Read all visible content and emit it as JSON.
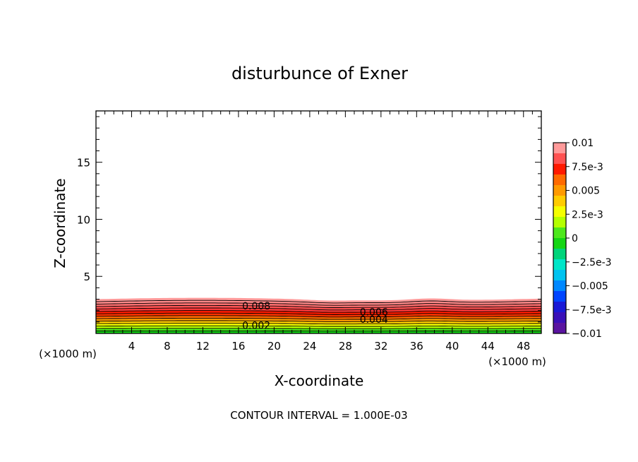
{
  "chart_data": {
    "type": "contour",
    "title": "disturbunce of Exner",
    "xlabel": "X-coordinate",
    "ylabel": "Z-coordinate",
    "x_unit": "(×1000 m)",
    "y_unit": "(×1000 m)",
    "xlim": [
      0,
      50
    ],
    "ylim": [
      0,
      19.5
    ],
    "x_ticks": [
      4,
      8,
      12,
      16,
      20,
      24,
      28,
      32,
      36,
      40,
      44,
      48
    ],
    "y_ticks": [
      5,
      10,
      15
    ],
    "contour_interval_label": "CONTOUR INTERVAL = 1.000E-03",
    "contour_levels": [
      0.001,
      0.002,
      0.003,
      0.004,
      0.005,
      0.006,
      0.007,
      0.008,
      0.009,
      0.01
    ],
    "contour_labels": [
      {
        "text": "0.008",
        "x": 18,
        "z": 2.4
      },
      {
        "text": "0.006",
        "x": 31.2,
        "z": 1.9
      },
      {
        "text": "0.004",
        "x": 31.2,
        "z": 1.25
      },
      {
        "text": "0.002",
        "x": 18,
        "z": 0.7
      }
    ],
    "colorbar": {
      "min": -0.01,
      "max": 0.01,
      "labels": [
        "0.01",
        "7.5e-3",
        "0.005",
        "2.5e-3",
        "0",
        "−2.5e-3",
        "−0.005",
        "−7.5e-3",
        "−0.01"
      ],
      "colors": [
        "#ff9a9a",
        "#ff5252",
        "#ff1a00",
        "#ff6a00",
        "#ff9a00",
        "#ffcc00",
        "#f5ff00",
        "#b4ff00",
        "#4de81c",
        "#14d614",
        "#00d47a",
        "#00e6c8",
        "#00c3f0",
        "#0088ff",
        "#0045ff",
        "#1a1ad6",
        "#3a10b8",
        "#5a14a0"
      ]
    }
  }
}
